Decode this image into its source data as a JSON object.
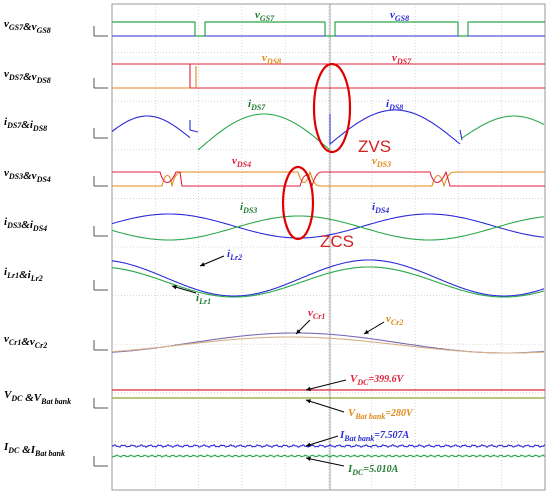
{
  "row_labels": [
    "vGS7&vGS8",
    "vDS7&vDS8",
    "iDS7&iDS8",
    "vDS3&vDS4",
    "iDS3&iDS4",
    "iLr1&iLr2",
    "vCr1&vCr2",
    "VDC &VBat bank",
    "IDC &IBat bank"
  ],
  "annotations": {
    "vgs7": "vGS7",
    "vgs8": "vGS8",
    "vds8": "vDS8",
    "vds7": "vDS7",
    "ids7": "iDS7",
    "ids8": "iDS8",
    "vds4": "vDS4",
    "vds3": "vDS3",
    "ids3": "iDS3",
    "ids4": "iDS4",
    "ilr2": "iLr2",
    "ilr1": "iLr1",
    "vcr1": "vCr1",
    "vcr2": "vCr2",
    "vdc": "VDC=399.6V",
    "vbat": "VBat bank=280V",
    "ibat": "IBat bank=7.507A",
    "idc": "IDC=5.010A"
  },
  "zvs_label": "ZVS",
  "zcs_label": "ZCS",
  "colors": {
    "green": "#2aa84a",
    "blue": "#2b2bd8",
    "red": "#e0203a",
    "orange": "#e08a1a",
    "purple": "#7a6ab0",
    "ellipse": "#e00000",
    "grid": "#bdbdbd",
    "dark_green": "#1f7a30"
  }
}
